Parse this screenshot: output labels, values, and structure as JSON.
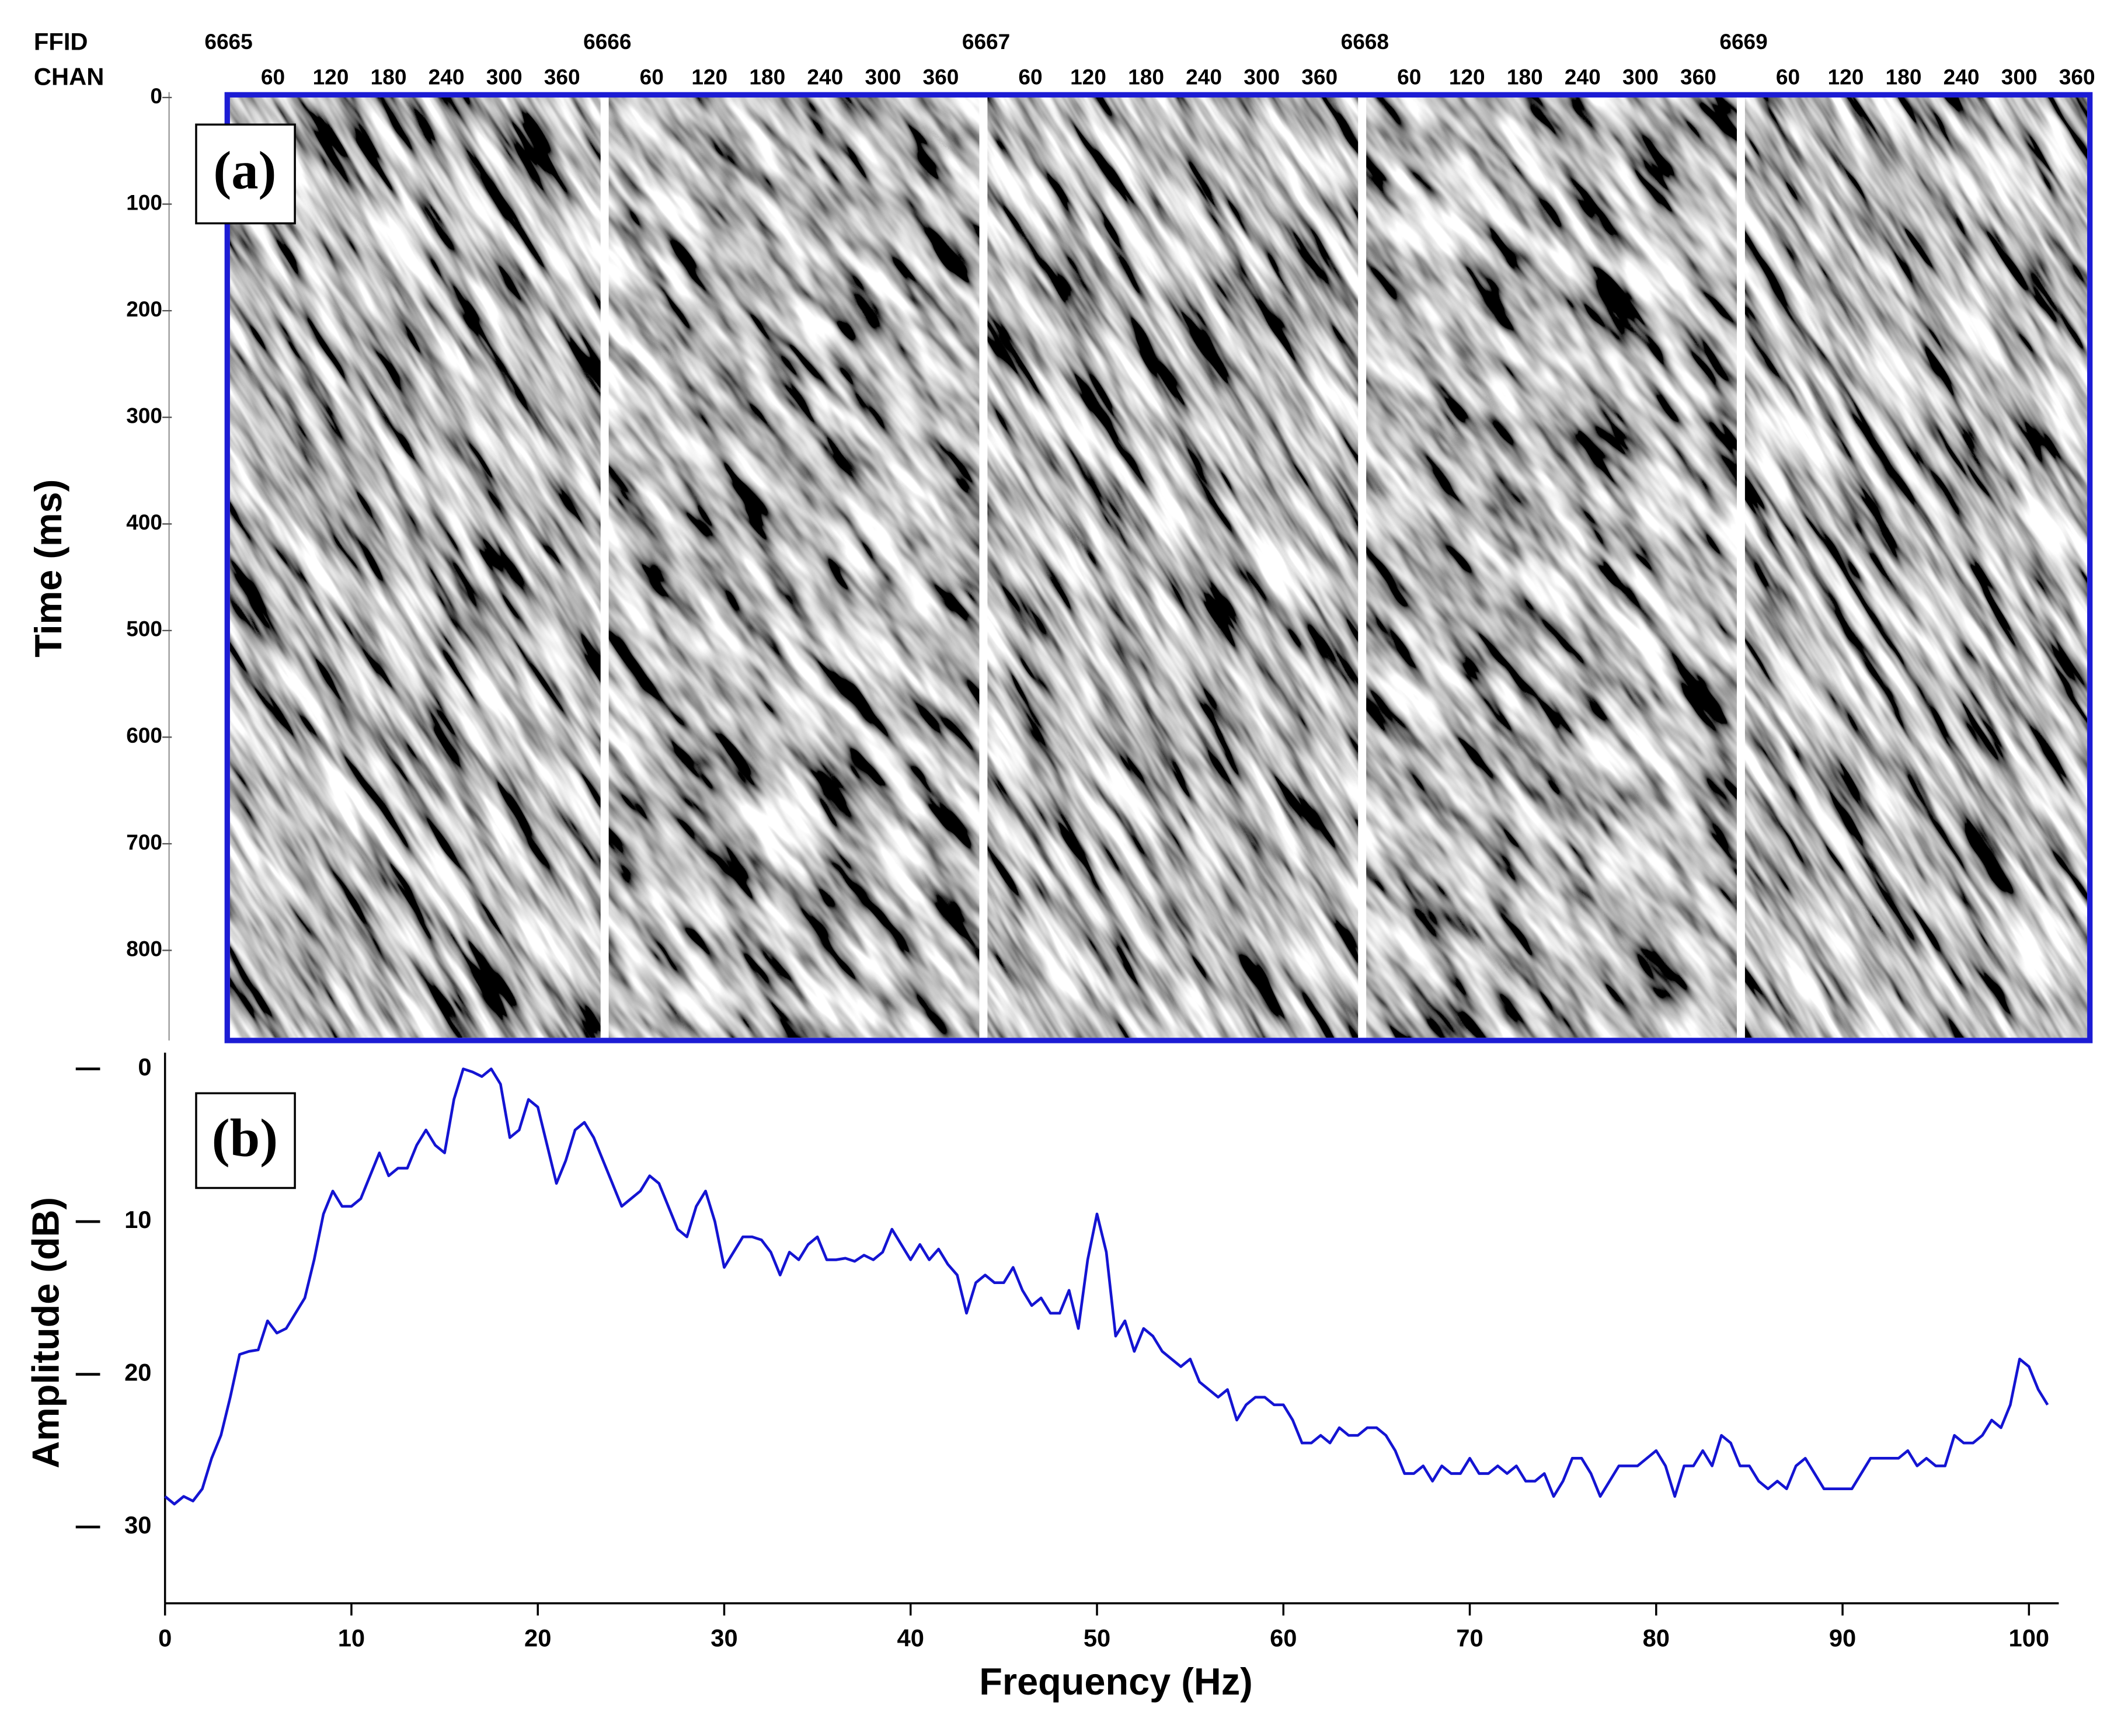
{
  "chart_data": [
    {
      "type": "seismic",
      "panel_label": "(a)",
      "row_labels": [
        "FFID",
        "CHAN"
      ],
      "ffid": [
        6665,
        6666,
        6667,
        6668,
        6669
      ],
      "chan_ticks": [
        60,
        120,
        180,
        240,
        300,
        360
      ],
      "chan_lim": [
        0,
        400
      ],
      "ylabel": "Time (ms)",
      "ylim": [
        0,
        882
      ],
      "yticks": [
        0,
        100,
        200,
        300,
        400,
        500,
        600,
        700,
        800
      ],
      "border_color": "#1c1cd4"
    },
    {
      "type": "line",
      "panel_label": "(b)",
      "xlabel": "Frequency (Hz)",
      "ylabel": "Amplitude (dB)",
      "color": "#1414d2",
      "xlim": [
        0,
        101.6
      ],
      "xticks": [
        0,
        10,
        20,
        30,
        40,
        50,
        60,
        70,
        80,
        90,
        100
      ],
      "ylim": [
        35,
        0
      ],
      "yticks": [
        0,
        10,
        20,
        30
      ],
      "x": [
        0,
        0.5,
        1,
        1.5,
        2,
        2.5,
        3,
        3.5,
        4,
        4.5,
        5,
        5.5,
        6,
        6.5,
        7,
        7.5,
        8,
        8.5,
        9,
        9.5,
        10,
        10.5,
        11,
        11.5,
        12,
        12.5,
        13,
        13.5,
        14,
        14.5,
        15,
        15.5,
        16,
        16.5,
        17,
        17.5,
        18,
        18.5,
        19,
        19.5,
        20,
        20.5,
        21,
        21.5,
        22,
        22.5,
        23,
        23.5,
        24,
        24.5,
        25,
        25.5,
        26,
        26.5,
        27,
        27.5,
        28,
        28.5,
        29,
        29.5,
        30,
        30.5,
        31,
        31.5,
        32,
        32.5,
        33,
        33.5,
        34,
        34.5,
        35,
        35.5,
        36,
        36.5,
        37,
        37.5,
        38,
        38.5,
        39,
        39.5,
        40,
        40.5,
        41,
        41.5,
        42,
        42.5,
        43,
        43.5,
        44,
        44.5,
        45,
        45.5,
        46,
        46.5,
        47,
        47.5,
        48,
        48.5,
        49,
        49.5,
        50,
        50.5,
        51,
        51.5,
        52,
        52.5,
        53,
        53.5,
        54,
        54.5,
        55,
        55.5,
        56,
        56.5,
        57,
        57.5,
        58,
        58.5,
        59,
        59.5,
        60,
        60.5,
        61,
        61.5,
        62,
        62.5,
        63,
        63.5,
        64,
        64.5,
        65,
        65.5,
        66,
        66.5,
        67,
        67.5,
        68,
        68.5,
        69,
        69.5,
        70,
        70.5,
        71,
        71.5,
        72,
        72.5,
        73,
        73.5,
        74,
        74.5,
        75,
        75.5,
        76,
        76.5,
        77,
        77.5,
        78,
        78.5,
        79,
        79.5,
        80,
        80.5,
        81,
        81.5,
        82,
        82.5,
        83,
        83.5,
        84,
        84.5,
        85,
        85.5,
        86,
        86.5,
        87,
        87.5,
        88,
        88.5,
        89,
        89.5,
        90,
        90.5,
        91,
        91.5,
        92,
        92.5,
        93,
        93.5,
        94,
        94.5,
        95,
        95.5,
        96,
        96.5,
        97,
        97.5,
        98,
        98.5,
        99,
        99.5,
        100,
        100.5,
        101
      ],
      "values": [
        28,
        28.5,
        28,
        28.3,
        27.5,
        25.5,
        24,
        21.5,
        18.7,
        18.5,
        18.4,
        16.5,
        17.3,
        17,
        16,
        15,
        12.5,
        9.5,
        8,
        9,
        9,
        8.5,
        7,
        5.5,
        7,
        6.5,
        6.5,
        5,
        4,
        5,
        5.5,
        2,
        0,
        0.2,
        0.5,
        0,
        1,
        4.5,
        4,
        2,
        2.5,
        5,
        7.5,
        6,
        4,
        3.5,
        4.5,
        6,
        7.5,
        9,
        8.5,
        8,
        7,
        7.5,
        9,
        10.5,
        11,
        9,
        8,
        10,
        13,
        12,
        11,
        11,
        11.2,
        12,
        13.5,
        12,
        12.5,
        11.5,
        11,
        12.5,
        12.5,
        12.4,
        12.6,
        12.2,
        12.5,
        12,
        10.5,
        11.5,
        12.5,
        11.5,
        12.5,
        11.8,
        12.8,
        13.5,
        16,
        14,
        13.5,
        14,
        14,
        13,
        14.5,
        15.5,
        15,
        16,
        16,
        14.5,
        17,
        12.5,
        9.5,
        12,
        17.5,
        16.5,
        18.5,
        17,
        17.5,
        18.5,
        19,
        19.5,
        19,
        20.5,
        21,
        21.5,
        21,
        23,
        22,
        21.5,
        21.5,
        22,
        22,
        23,
        24.5,
        24.5,
        24,
        24.5,
        23.5,
        24,
        24,
        23.5,
        23.5,
        24,
        25,
        26.5,
        26.5,
        26,
        27,
        26,
        26.5,
        26.5,
        25.5,
        26.5,
        26.5,
        26,
        26.5,
        26,
        27,
        27,
        26.5,
        28,
        27,
        25.5,
        25.5,
        26.5,
        28,
        27,
        26,
        26,
        26,
        25.5,
        25,
        26,
        28,
        26,
        26,
        25,
        26,
        24,
        24.5,
        26,
        26,
        27,
        27.5,
        27,
        27.5,
        26,
        25.5,
        26.5,
        27.5,
        27.5,
        27.5,
        27.5,
        26.5,
        25.5,
        25.5,
        25.5,
        25.5,
        25,
        26,
        25.5,
        26,
        26,
        24,
        24.5,
        24.5,
        24,
        23,
        23.5,
        22,
        19,
        19.5,
        21,
        22
      ]
    }
  ]
}
